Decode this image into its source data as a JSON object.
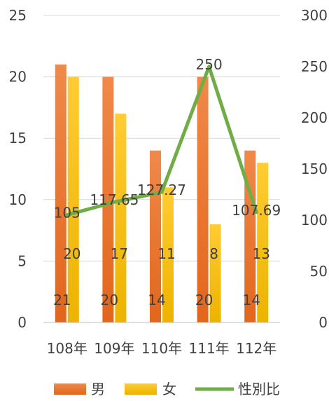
{
  "chart_data": {
    "type": "bar",
    "categories": [
      "108年",
      "109年",
      "110年",
      "111年",
      "112年"
    ],
    "series": [
      {
        "name": "男",
        "type": "bar",
        "axis": "left",
        "values": [
          21,
          20,
          14,
          20,
          14
        ],
        "labels": [
          "21",
          "20",
          "14",
          "20",
          "14"
        ],
        "color": "#ED7D31"
      },
      {
        "name": "女",
        "type": "bar",
        "axis": "left",
        "values": [
          20,
          17,
          11,
          8,
          13
        ],
        "labels": [
          "20",
          "17",
          "11",
          "8",
          "13"
        ],
        "color": "#FFC000"
      },
      {
        "name": "性別比",
        "type": "line",
        "axis": "right",
        "values": [
          105,
          117.65,
          127.27,
          250,
          107.69
        ],
        "labels": [
          "105",
          "117.65",
          "127.27",
          "250",
          "107.69"
        ],
        "color": "#70AD47"
      }
    ],
    "y_left": {
      "ylim": [
        0,
        25
      ],
      "ticks": [
        "0",
        "5",
        "10",
        "15",
        "20",
        "25"
      ]
    },
    "y_right": {
      "ylim": [
        0,
        300
      ],
      "ticks": [
        "0",
        "50",
        "100",
        "150",
        "200",
        "250",
        "300"
      ]
    },
    "grid": true,
    "legend": "bottom"
  }
}
